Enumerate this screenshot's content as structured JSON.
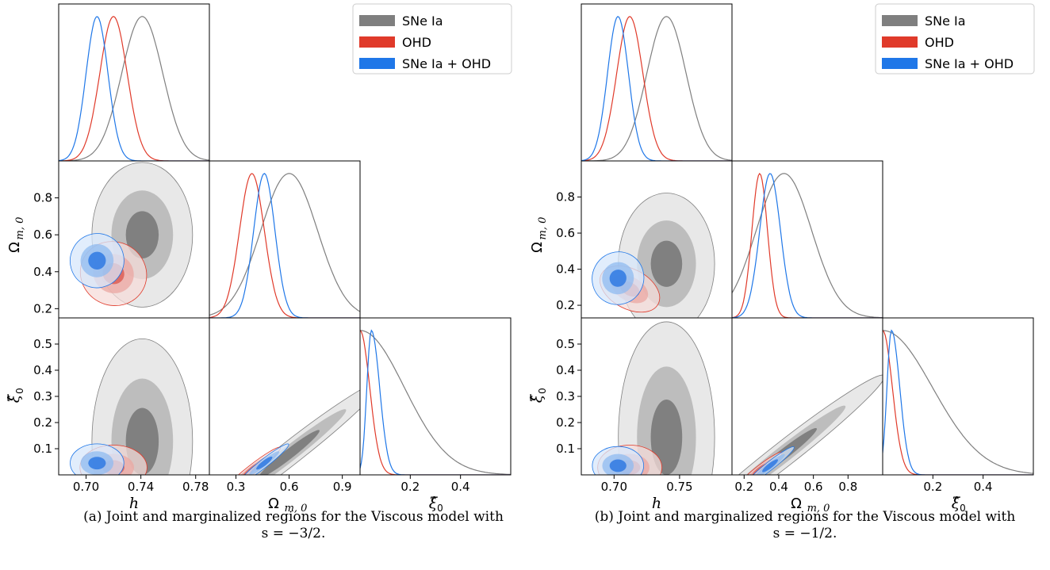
{
  "legend": [
    {
      "name": "SNe Ia",
      "color": "#7f7f7f"
    },
    {
      "name": "OHD",
      "color": "#e03a2a"
    },
    {
      "name": "SNe Ia + OHD",
      "color": "#1f77e8"
    }
  ],
  "axis_labels": {
    "h": "h",
    "om": "Ω",
    "om_sub": "m, 0",
    "xi": "ξ̂",
    "xi_sub": "0"
  },
  "chart_data": [
    {
      "type": "corner",
      "caption_line1": "(a) Joint and marginalized regions for the Viscous model with",
      "caption_line2": "s = −3/2.",
      "parameters": [
        "h",
        "Ω_m,0",
        "ξ̂_0"
      ],
      "ranges": {
        "h": [
          0.68,
          0.79
        ],
        "om": [
          0.15,
          1.0
        ],
        "xi": [
          0.0,
          0.6
        ]
      },
      "ticks": {
        "h": [
          "0.70",
          "0.74",
          "0.78"
        ],
        "om_x": [
          "0.3",
          "0.6",
          "0.9"
        ],
        "om_y": [
          "0.2",
          "0.4",
          "0.6",
          "0.8"
        ],
        "xi_x": [
          "0.2",
          "0.4"
        ],
        "xi_y": [
          "0.1",
          "0.2",
          "0.3",
          "0.4",
          "0.5"
        ]
      },
      "series": [
        {
          "name": "SNe Ia",
          "h": [
            0.741,
            0.015
          ],
          "om": [
            0.6,
            0.16
          ],
          "xi": [
            0.08,
            0.16
          ],
          "xi_peak": 0.0
        },
        {
          "name": "OHD",
          "h": [
            0.72,
            0.01
          ],
          "om": [
            0.39,
            0.07
          ],
          "xi": [
            0.02,
            0.035
          ],
          "xi_peak": 0.0
        },
        {
          "name": "SNe Ia + OHD",
          "h": [
            0.708,
            0.008
          ],
          "om": [
            0.46,
            0.06
          ],
          "xi": [
            0.045,
            0.03
          ],
          "xi_peak": 0.045
        }
      ]
    },
    {
      "type": "corner",
      "caption_line1": "(b) Joint and marginalized regions for the Viscous model with",
      "caption_line2": "s = −1/2.",
      "parameters": [
        "h",
        "Ω_m,0",
        "ξ̂_0"
      ],
      "ranges": {
        "h": [
          0.675,
          0.79
        ],
        "om": [
          0.13,
          1.0
        ],
        "xi": [
          0.0,
          0.6
        ]
      },
      "ticks": {
        "h": [
          "0.70",
          "0.75"
        ],
        "om_x": [
          "0.2",
          "0.4",
          "0.6",
          "0.8"
        ],
        "om_y": [
          "0.2",
          "0.4",
          "0.6",
          "0.8"
        ],
        "xi_x": [
          "0.2",
          "0.4"
        ],
        "xi_y": [
          "0.1",
          "0.2",
          "0.3",
          "0.4",
          "0.5"
        ]
      },
      "series": [
        {
          "name": "SNe Ia",
          "h": [
            0.74,
            0.015
          ],
          "om": [
            0.43,
            0.16
          ],
          "xi": [
            0.08,
            0.18
          ],
          "xi_peak": 0.0
        },
        {
          "name": "OHD",
          "h": [
            0.712,
            0.01
          ],
          "om": [
            0.29,
            0.045
          ],
          "xi": [
            0.02,
            0.035
          ],
          "xi_peak": 0.0
        },
        {
          "name": "SNe Ia + OHD",
          "h": [
            0.703,
            0.008
          ],
          "om": [
            0.35,
            0.06
          ],
          "xi": [
            0.035,
            0.03
          ],
          "xi_peak": 0.035
        }
      ]
    }
  ]
}
